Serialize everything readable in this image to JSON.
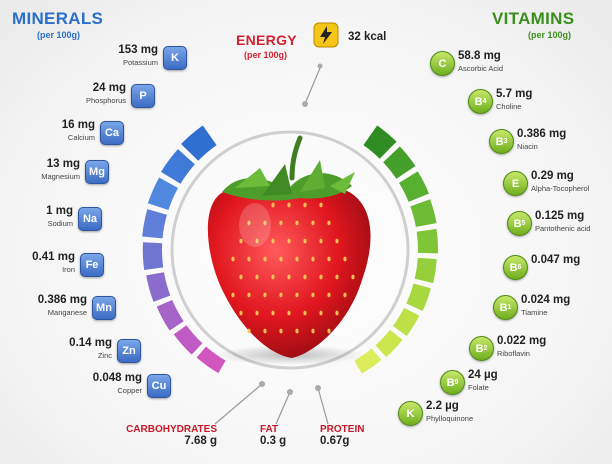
{
  "minerals": {
    "title": "MINERALS",
    "subtitle": "(per 100g)",
    "items": [
      {
        "amount": "153 mg",
        "name": "Potassium",
        "symbol": "K"
      },
      {
        "amount": "24 mg",
        "name": "Phosphorus",
        "symbol": "P"
      },
      {
        "amount": "16 mg",
        "name": "Calcium",
        "symbol": "Ca"
      },
      {
        "amount": "13 mg",
        "name": "Magnesium",
        "symbol": "Mg"
      },
      {
        "amount": "1 mg",
        "name": "Sodium",
        "symbol": "Na"
      },
      {
        "amount": "0.41 mg",
        "name": "Iron",
        "symbol": "Fe"
      },
      {
        "amount": "0.386 mg",
        "name": "Manganese",
        "symbol": "Mn"
      },
      {
        "amount": "0.14 mg",
        "name": "Zinc",
        "symbol": "Zn"
      },
      {
        "amount": "0.048 mg",
        "name": "Copper",
        "symbol": "Cu"
      }
    ]
  },
  "vitamins": {
    "title": "VITAMINS",
    "subtitle": "(per 100g)",
    "items": [
      {
        "amount": "58.8 mg",
        "name": "Ascorbic Acid",
        "symbol": "C"
      },
      {
        "amount": "5.7 mg",
        "name": "Choline",
        "symbol": "B4"
      },
      {
        "amount": "0.386 mg",
        "name": "Niacin",
        "symbol": "B3"
      },
      {
        "amount": "0.29 mg",
        "name": "Alpha-Tocopherol",
        "symbol": "E"
      },
      {
        "amount": "0.125 mg",
        "name": "Pantothenic acid",
        "symbol": "B5"
      },
      {
        "amount": "0.047 mg",
        "name": "",
        "symbol": "B6"
      },
      {
        "amount": "0.024 mg",
        "name": "Tiamine",
        "symbol": "B1"
      },
      {
        "amount": "0.022 mg",
        "name": "Riboflavin",
        "symbol": "B2"
      },
      {
        "amount": "24 µg",
        "name": "Folate",
        "symbol": "B9"
      },
      {
        "amount": "2.2 µg",
        "name": "Phylloquinone",
        "symbol": "K"
      }
    ]
  },
  "energy": {
    "title": "ENERGY",
    "subtitle": "(per 100g)",
    "value": "32 kcal",
    "icon": "lightning-icon"
  },
  "macros": [
    {
      "name": "CARBOHYDRATES",
      "value": "7.68 g"
    },
    {
      "name": "FAT",
      "value": "0.3 g"
    },
    {
      "name": "PROTEIN",
      "value": "0.67g"
    }
  ],
  "colors": {
    "minerals_title": "#2a6fc9",
    "vitamins_title": "#3a8f1c",
    "energy_title": "#d6202f",
    "macro": "#c9182a"
  }
}
